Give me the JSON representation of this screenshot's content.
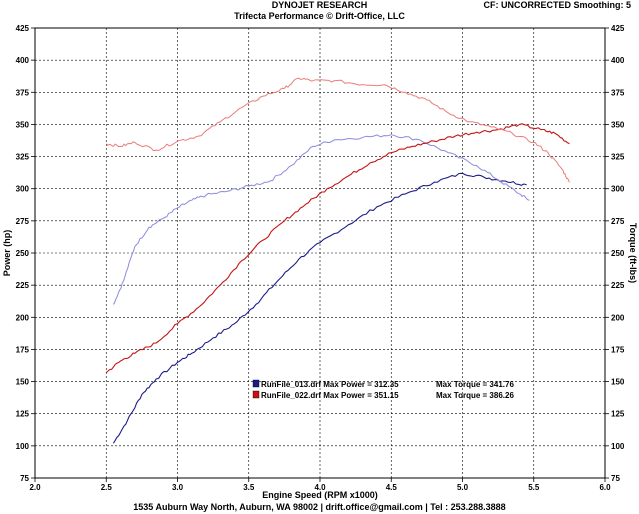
{
  "header": {
    "title": "DYNOJET RESEARCH",
    "subtitle": "Trifecta Performance © Drift-Office, LLC",
    "correction": "CF: UNCORRECTED  Smoothing: 5"
  },
  "footer": {
    "text": "1535 Auburn Way North, Auburn, WA 98002 | drift.office@gmail.com | Tel : 253.288.3888"
  },
  "chart_data": {
    "type": "line",
    "xlabel": "Engine Speed (RPM x1000)",
    "ylabel_left": "Power (hp)",
    "ylabel_right": "Torque (ft-lbs)",
    "xlim": [
      2.0,
      6.0
    ],
    "xticks": [
      "2.0",
      "2.5",
      "3.0",
      "3.5",
      "4.0",
      "4.5",
      "5.0",
      "5.5",
      "6.0"
    ],
    "ylim_left": [
      75,
      425
    ],
    "ylim_right": [
      75,
      425
    ],
    "yticks": [
      "75",
      "100",
      "125",
      "150",
      "175",
      "200",
      "225",
      "250",
      "275",
      "300",
      "325",
      "350",
      "375",
      "400",
      "425"
    ],
    "grid": true,
    "colors": {
      "run013": "#1c1c8c",
      "run013_light": "#8a8ae0",
      "run022": "#c41414",
      "run022_light": "#ea7c7c"
    },
    "legend": [
      {
        "file": "RunFile_013.drf",
        "power_label": "Max Power = 312.35",
        "torque_label": "Max Torque = 341.76",
        "color": "#1c1c8c"
      },
      {
        "file": "RunFile_022.drf",
        "power_label": "Max Power = 351.15",
        "torque_label": "Max Torque = 386.26",
        "color": "#c41414"
      }
    ],
    "series": [
      {
        "key": "run013_power",
        "color": "#1c1c8c",
        "width": 1.1,
        "x": [
          2.55,
          2.65,
          2.75,
          2.85,
          3.0,
          3.1,
          3.25,
          3.4,
          3.55,
          3.7,
          3.85,
          4.0,
          4.2,
          4.4,
          4.6,
          4.8,
          5.0,
          5.15,
          5.3,
          5.45
        ],
        "values": [
          102,
          120,
          140,
          152,
          165,
          172,
          184,
          195,
          210,
          228,
          245,
          258,
          272,
          286,
          296,
          305,
          312,
          309,
          306,
          303
        ]
      },
      {
        "key": "run013_torque",
        "color": "#8a8ae0",
        "width": 1.0,
        "x": [
          2.55,
          2.62,
          2.7,
          2.8,
          2.9,
          3.0,
          3.1,
          3.2,
          3.35,
          3.5,
          3.65,
          3.8,
          3.95,
          4.1,
          4.3,
          4.5,
          4.7,
          4.9,
          5.1,
          5.25,
          5.4,
          5.47
        ],
        "values": [
          210,
          228,
          255,
          270,
          277,
          285,
          291,
          295,
          298,
          302,
          306,
          318,
          333,
          338,
          340,
          342,
          338,
          328,
          318,
          307,
          296,
          291
        ]
      },
      {
        "key": "run022_power",
        "color": "#c41414",
        "width": 1.1,
        "x": [
          2.5,
          2.6,
          2.7,
          2.85,
          3.0,
          3.15,
          3.3,
          3.45,
          3.6,
          3.75,
          3.9,
          4.05,
          4.2,
          4.35,
          4.5,
          4.65,
          4.8,
          4.95,
          5.1,
          5.25,
          5.4,
          5.55,
          5.65,
          5.75
        ],
        "values": [
          157,
          166,
          172,
          180,
          195,
          208,
          225,
          244,
          260,
          275,
          288,
          300,
          310,
          320,
          328,
          333,
          337,
          341,
          344,
          346,
          350,
          346,
          343,
          335
        ]
      },
      {
        "key": "run022_torque",
        "color": "#ea7c7c",
        "width": 1.0,
        "x": [
          2.5,
          2.6,
          2.7,
          2.85,
          3.0,
          3.15,
          3.3,
          3.45,
          3.6,
          3.75,
          3.85,
          3.95,
          4.1,
          4.3,
          4.45,
          4.6,
          4.75,
          4.9,
          5.05,
          5.2,
          5.35,
          5.5,
          5.6,
          5.7,
          5.75
        ],
        "values": [
          335,
          333,
          336,
          330,
          337,
          341,
          352,
          363,
          372,
          378,
          386,
          384,
          384,
          381,
          381,
          375,
          369,
          359,
          352,
          348,
          343,
          336,
          328,
          315,
          305
        ]
      }
    ]
  }
}
